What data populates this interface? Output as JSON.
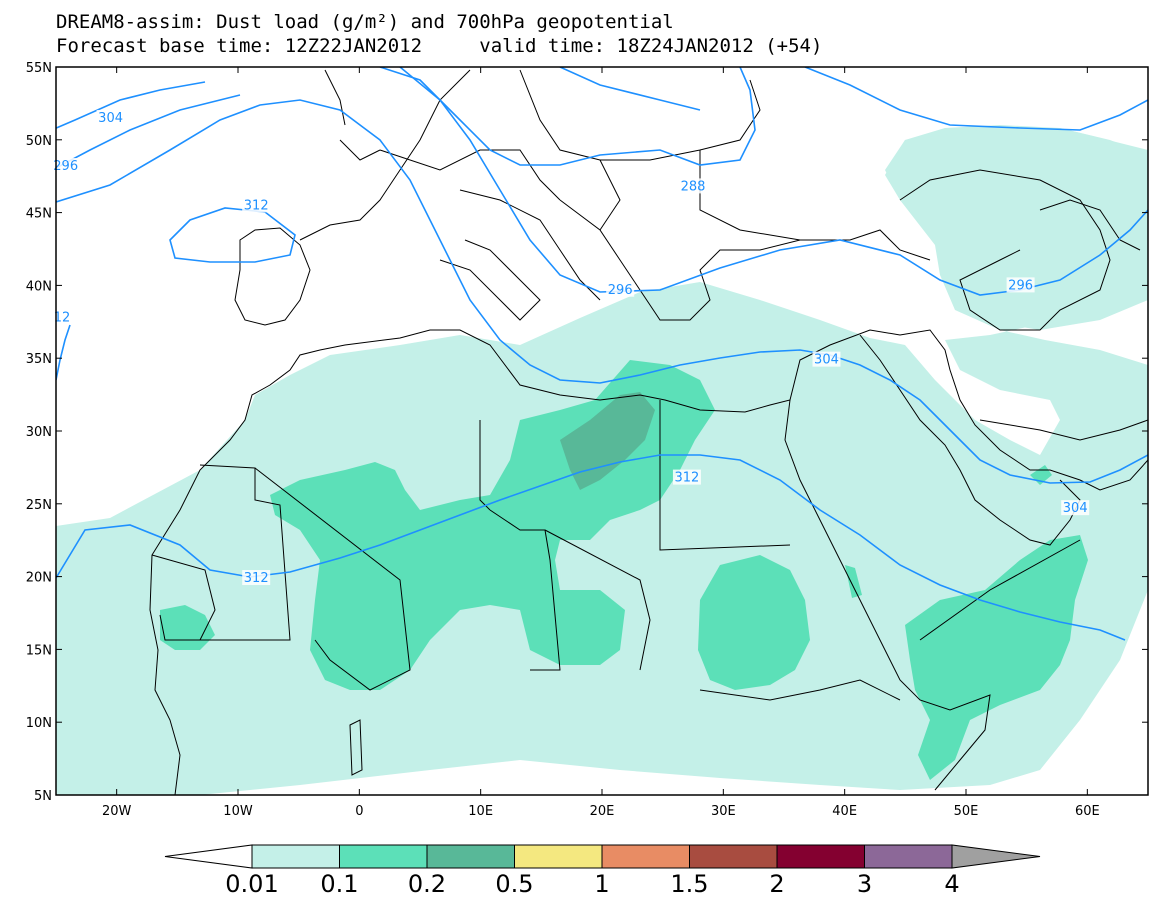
{
  "title": {
    "line1": "DREAM8-assim: Dust load (g/m²) and 700hPa geopotential",
    "base_label": "Forecast base time: 12Z22JAN2012",
    "valid_label": "valid time: 18Z24JAN2012 (+54)"
  },
  "map": {
    "lon_range": [
      -25,
      65
    ],
    "lat_range": [
      5,
      55
    ],
    "lat_labels": [
      "5N",
      "10N",
      "15N",
      "20N",
      "25N",
      "30N",
      "35N",
      "40N",
      "45N",
      "50N",
      "55N"
    ],
    "lon_labels": [
      "20W",
      "10W",
      "0",
      "10E",
      "20E",
      "30E",
      "40E",
      "50E",
      "60E"
    ],
    "contour_labels": [
      {
        "text": "304",
        "lon": -20.5,
        "lat": 51.5
      },
      {
        "text": "296",
        "lon": -24.2,
        "lat": 48.2
      },
      {
        "text": "312",
        "lon": -8.5,
        "lat": 45.5
      },
      {
        "text": "12",
        "lon": -24.5,
        "lat": 37.8
      },
      {
        "text": "288",
        "lon": 27.5,
        "lat": 46.8
      },
      {
        "text": "296",
        "lon": 21.5,
        "lat": 39.7
      },
      {
        "text": "296",
        "lon": 54.5,
        "lat": 40.0
      },
      {
        "text": "304",
        "lon": 38.5,
        "lat": 34.9
      },
      {
        "text": "312",
        "lon": 27.0,
        "lat": 26.8
      },
      {
        "text": "312",
        "lon": -8.5,
        "lat": 19.9
      },
      {
        "text": "304",
        "lon": 59.0,
        "lat": 24.7
      }
    ],
    "colors": {
      "ocean_bg": "#ffffff",
      "dust_0_01": "#c4f0e8",
      "dust_0_1": "#5ce0b8",
      "dust_0_2": "#58b898",
      "contour": "#1e90ff",
      "border": "#000000"
    }
  },
  "colorbar": {
    "labels": [
      "0.01",
      "0.1",
      "0.2",
      "0.5",
      "1",
      "1.5",
      "2",
      "3",
      "4"
    ],
    "colors": [
      "#ffffff",
      "#c4f0e8",
      "#5ce0b8",
      "#58b898",
      "#f4e880",
      "#e88c64",
      "#a84c40",
      "#840030",
      "#8c6898",
      "#a0a0a0"
    ]
  }
}
